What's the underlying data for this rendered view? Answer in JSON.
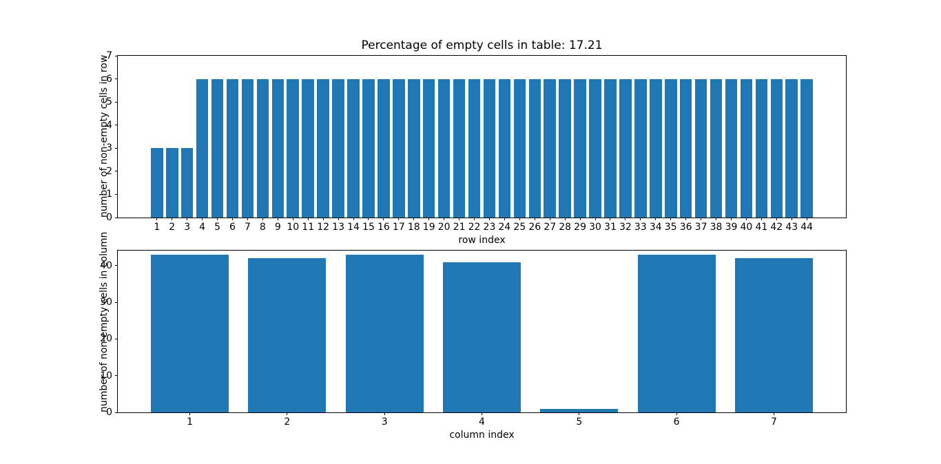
{
  "figure": {
    "background_color": "#ffffff",
    "text_color": "#000000",
    "bar_color": "#1f77b4"
  },
  "chart_data": [
    {
      "type": "bar",
      "title": "Percentage of empty cells in table: 17.21",
      "xlabel": "row index",
      "ylabel": "number of non-empty cells in row",
      "categories": [
        1,
        2,
        3,
        4,
        5,
        6,
        7,
        8,
        9,
        10,
        11,
        12,
        13,
        14,
        15,
        16,
        17,
        18,
        19,
        20,
        21,
        22,
        23,
        24,
        25,
        26,
        27,
        28,
        29,
        30,
        31,
        32,
        33,
        34,
        35,
        36,
        37,
        38,
        39,
        40,
        41,
        42,
        43,
        44
      ],
      "values": [
        3,
        3,
        3,
        6,
        6,
        6,
        6,
        6,
        6,
        6,
        6,
        6,
        6,
        6,
        6,
        6,
        6,
        6,
        6,
        6,
        6,
        6,
        6,
        6,
        6,
        6,
        6,
        6,
        6,
        6,
        6,
        6,
        6,
        6,
        6,
        6,
        6,
        6,
        6,
        6,
        6,
        6,
        6,
        6
      ],
      "bar_color": "#1f77b4",
      "bar_width": 0.8,
      "xlim": [
        -1.59,
        46.59
      ],
      "ylim": [
        0,
        7
      ],
      "yticks": [
        0,
        1,
        2,
        3,
        4,
        5,
        6,
        7
      ],
      "grid": false,
      "legend": false
    },
    {
      "type": "bar",
      "title": "",
      "xlabel": "column index",
      "ylabel": "number of non-empty cells in column",
      "categories": [
        1,
        2,
        3,
        4,
        5,
        6,
        7
      ],
      "values": [
        43,
        42,
        43,
        41,
        1,
        43,
        42
      ],
      "bar_color": "#1f77b4",
      "bar_width": 0.8,
      "xlim": [
        0.26,
        7.74
      ],
      "ylim": [
        0,
        44.1
      ],
      "yticks": [
        0,
        10,
        20,
        30,
        40
      ],
      "grid": false,
      "legend": false
    }
  ]
}
